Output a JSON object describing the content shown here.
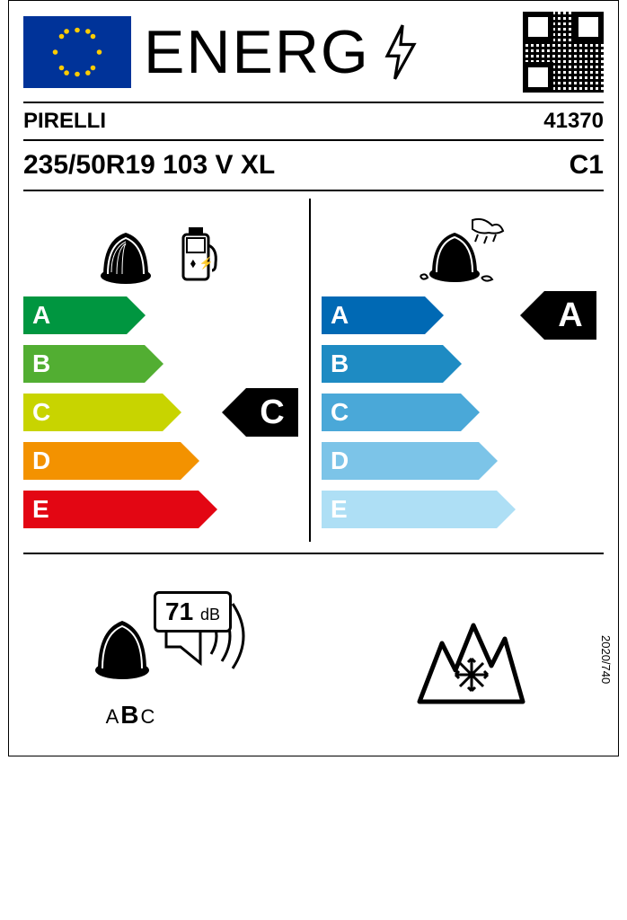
{
  "header": {
    "title": "ENERG"
  },
  "brand": "PIRELLI",
  "article": "41370",
  "size": "235/50R19 103 V XL",
  "class": "C1",
  "fuel": {
    "grades": [
      "A",
      "B",
      "C",
      "D",
      "E"
    ],
    "colors": [
      "#009640",
      "#52ae32",
      "#c8d400",
      "#f39200",
      "#e30613"
    ],
    "widths": [
      105,
      125,
      145,
      165,
      185
    ],
    "rating": "C",
    "rating_index": 2
  },
  "wet": {
    "grades": [
      "A",
      "B",
      "C",
      "D",
      "E"
    ],
    "colors": [
      "#0069b4",
      "#1e8bc3",
      "#4aa8d8",
      "#7cc4e8",
      "#aedff5"
    ],
    "widths": [
      105,
      125,
      145,
      165,
      185
    ],
    "rating": "A",
    "rating_index": 0
  },
  "noise": {
    "db": "71",
    "unit": "dB",
    "letters": [
      "A",
      "B",
      "C"
    ],
    "active": "B"
  },
  "regulation": "2020/740"
}
